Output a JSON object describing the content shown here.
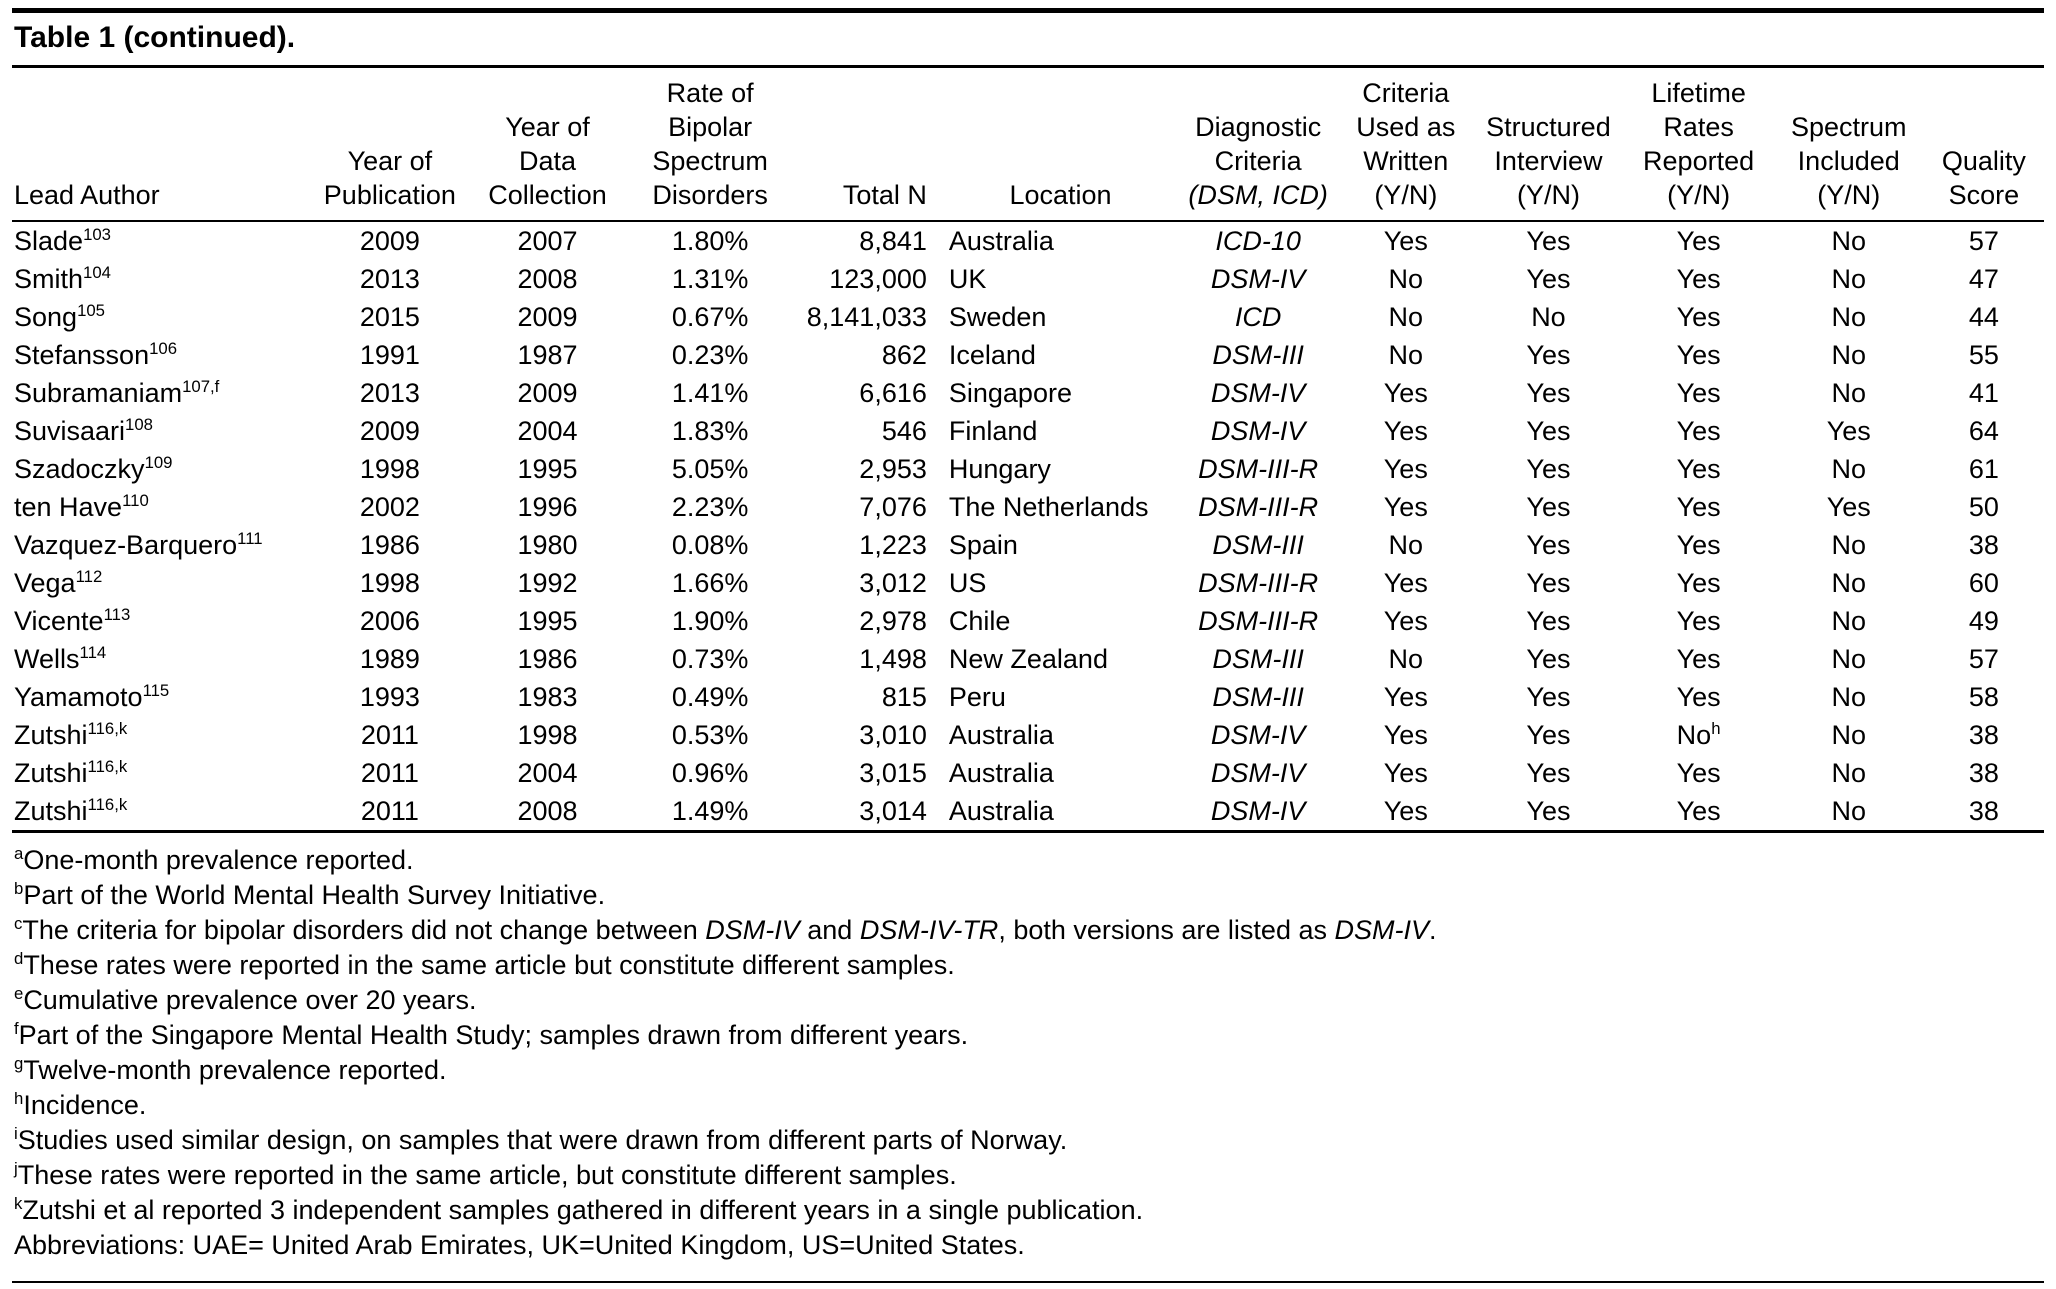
{
  "title": "Table 1 (continued).",
  "table": {
    "columns": [
      {
        "id": "lead-author",
        "header_lines": [
          "Lead Author"
        ]
      },
      {
        "id": "year-of-publication",
        "header_lines": [
          "Year of",
          "Publication"
        ]
      },
      {
        "id": "year-of-data-collection",
        "header_lines": [
          "Year of",
          "Data",
          "Collection"
        ]
      },
      {
        "id": "rate-of-bipolar-spectrum-disorders",
        "header_lines": [
          "Rate of",
          "Bipolar",
          "Spectrum",
          "Disorders"
        ]
      },
      {
        "id": "total-n",
        "header_lines": [
          "Total N"
        ]
      },
      {
        "id": "location",
        "header_lines": [
          "Location"
        ]
      },
      {
        "id": "diagnostic-criteria",
        "header_lines": [
          "Diagnostic",
          "Criteria",
          "*(DSM, ICD)*"
        ]
      },
      {
        "id": "criteria-used-as-written",
        "header_lines": [
          "Criteria",
          "Used as",
          "Written",
          "(Y/N)"
        ]
      },
      {
        "id": "structured-interview",
        "header_lines": [
          "Structured",
          "Interview",
          "(Y/N)"
        ]
      },
      {
        "id": "lifetime-rates-reported",
        "header_lines": [
          "Lifetime",
          "Rates",
          "Reported",
          "(Y/N)"
        ]
      },
      {
        "id": "spectrum-included",
        "header_lines": [
          "Spectrum",
          "Included",
          "(Y/N)"
        ]
      },
      {
        "id": "quality-score",
        "header_lines": [
          "Quality",
          "Score"
        ]
      }
    ],
    "rows": [
      [
        "Slade^103",
        "2009",
        "2007",
        "1.80%",
        "8,841",
        "Australia",
        "ICD-10",
        "Yes",
        "Yes",
        "Yes",
        "No",
        "57"
      ],
      [
        "Smith^104",
        "2013",
        "2008",
        "1.31%",
        "123,000",
        "UK",
        "DSM-IV",
        "No",
        "Yes",
        "Yes",
        "No",
        "47"
      ],
      [
        "Song^105",
        "2015",
        "2009",
        "0.67%",
        "8,141,033",
        "Sweden",
        "ICD",
        "No",
        "No",
        "Yes",
        "No",
        "44"
      ],
      [
        "Stefansson^106",
        "1991",
        "1987",
        "0.23%",
        "862",
        "Iceland",
        "DSM-III",
        "No",
        "Yes",
        "Yes",
        "No",
        "55"
      ],
      [
        "Subramaniam^107,f",
        "2013",
        "2009",
        "1.41%",
        "6,616",
        "Singapore",
        "DSM-IV",
        "Yes",
        "Yes",
        "Yes",
        "No",
        "41"
      ],
      [
        "Suvisaari^108",
        "2009",
        "2004",
        "1.83%",
        "546",
        "Finland",
        "DSM-IV",
        "Yes",
        "Yes",
        "Yes",
        "Yes",
        "64"
      ],
      [
        "Szadoczky^109",
        "1998",
        "1995",
        "5.05%",
        "2,953",
        "Hungary",
        "DSM-III-R",
        "Yes",
        "Yes",
        "Yes",
        "No",
        "61"
      ],
      [
        "ten Have^110",
        "2002",
        "1996",
        "2.23%",
        "7,076",
        "The Netherlands",
        "DSM-III-R",
        "Yes",
        "Yes",
        "Yes",
        "Yes",
        "50"
      ],
      [
        "Vazquez-Barquero^111",
        "1986",
        "1980",
        "0.08%",
        "1,223",
        "Spain",
        "DSM-III",
        "No",
        "Yes",
        "Yes",
        "No",
        "38"
      ],
      [
        "Vega^112",
        "1998",
        "1992",
        "1.66%",
        "3,012",
        "US",
        "DSM-III-R",
        "Yes",
        "Yes",
        "Yes",
        "No",
        "60"
      ],
      [
        "Vicente^113",
        "2006",
        "1995",
        "1.90%",
        "2,978",
        "Chile",
        "DSM-III-R",
        "Yes",
        "Yes",
        "Yes",
        "No",
        "49"
      ],
      [
        "Wells^114",
        "1989",
        "1986",
        "0.73%",
        "1,498",
        "New Zealand",
        "DSM-III",
        "No",
        "Yes",
        "Yes",
        "No",
        "57"
      ],
      [
        "Yamamoto^115",
        "1993",
        "1983",
        "0.49%",
        "815",
        "Peru",
        "DSM-III",
        "Yes",
        "Yes",
        "Yes",
        "No",
        "58"
      ],
      [
        "Zutshi^116,k",
        "2011",
        "1998",
        "0.53%",
        "3,010",
        "Australia",
        "DSM-IV",
        "Yes",
        "Yes",
        "No^h",
        "No",
        "38"
      ],
      [
        "Zutshi^116,k",
        "2011",
        "2004",
        "0.96%",
        "3,015",
        "Australia",
        "DSM-IV",
        "Yes",
        "Yes",
        "Yes",
        "No",
        "38"
      ],
      [
        "Zutshi^116,k",
        "2011",
        "2008",
        "1.49%",
        "3,014",
        "Australia",
        "DSM-IV",
        "Yes",
        "Yes",
        "Yes",
        "No",
        "38"
      ]
    ]
  },
  "footnotes": [
    {
      "marker": "a",
      "text": "One-month prevalence reported."
    },
    {
      "marker": "b",
      "text": "Part of the World Mental Health Survey Initiative."
    },
    {
      "marker": "c",
      "text": "The criteria for bipolar disorders did not change between *DSM-IV* and *DSM-IV-TR*, both versions are listed as *DSM-IV*."
    },
    {
      "marker": "d",
      "text": "These rates were reported in the same article but constitute different samples."
    },
    {
      "marker": "e",
      "text": "Cumulative prevalence over 20 years."
    },
    {
      "marker": "f",
      "text": "Part of the Singapore Mental Health Study; samples drawn from different years."
    },
    {
      "marker": "g",
      "text": "Twelve-month prevalence reported."
    },
    {
      "marker": "h",
      "text": "Incidence."
    },
    {
      "marker": "i",
      "text": "Studies used similar design, on samples that were drawn from different parts of Norway."
    },
    {
      "marker": "j",
      "text": "These rates were reported in the same article, but constitute different samples."
    },
    {
      "marker": "k",
      "text": "Zutshi et al reported 3 independent samples gathered in different years in a single publication."
    },
    {
      "marker": "",
      "text": "Abbreviations: UAE= United Arab Emirates, UK=United Kingdom, US=United States."
    }
  ]
}
